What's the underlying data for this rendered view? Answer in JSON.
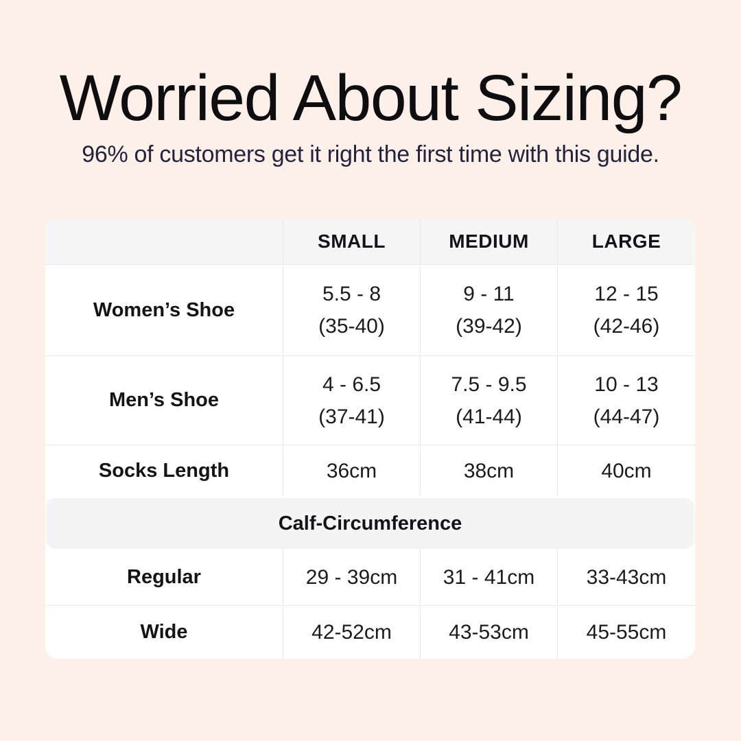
{
  "header": {
    "title": "Worried About Sizing?",
    "subtitle": "96% of customers get it right the first time with this guide."
  },
  "colors": {
    "background": "#FCF0E8",
    "table_background": "#FFFFFF",
    "header_row_background": "#F5F5F6",
    "section_band_background": "#F4F4F5",
    "border": "#E9E9EB",
    "title_text": "#0E0E10",
    "subtitle_text": "#23233F",
    "table_text": "#1B1B1D"
  },
  "table": {
    "columns": [
      "",
      "SMALL",
      "MEDIUM",
      "LARGE"
    ],
    "rows": [
      {
        "label": "Women’s Shoe",
        "cells": [
          [
            "5.5 - 8",
            "(35-40)"
          ],
          [
            "9 - 11",
            "(39-42)"
          ],
          [
            "12 - 15",
            "(42-46)"
          ]
        ]
      },
      {
        "label": "Men’s Shoe",
        "cells": [
          [
            "4 - 6.5",
            "(37-41)"
          ],
          [
            "7.5 - 9.5",
            "(41-44)"
          ],
          [
            "10 - 13",
            "(44-47)"
          ]
        ]
      },
      {
        "label": "Socks Length",
        "cells": [
          [
            "36cm"
          ],
          [
            "38cm"
          ],
          [
            "40cm"
          ]
        ]
      }
    ],
    "section_header": "Calf-Circumference",
    "section_rows": [
      {
        "label": "Regular",
        "cells": [
          [
            "29 - 39cm"
          ],
          [
            "31 - 41cm"
          ],
          [
            "33-43cm"
          ]
        ]
      },
      {
        "label": "Wide",
        "cells": [
          [
            "42-52cm"
          ],
          [
            "43-53cm"
          ],
          [
            "45-55cm"
          ]
        ]
      }
    ]
  },
  "chart_data": {
    "type": "table",
    "title": "Worried About Sizing?",
    "subtitle": "96% of customers get it right the first time with this guide.",
    "columns": [
      "",
      "SMALL",
      "MEDIUM",
      "LARGE"
    ],
    "rows": [
      [
        "Women’s Shoe",
        "5.5 - 8 (35-40)",
        "9 - 11 (39-42)",
        "12 - 15 (42-46)"
      ],
      [
        "Men’s Shoe",
        "4 - 6.5 (37-41)",
        "7.5 - 9.5 (41-44)",
        "10 - 13 (44-47)"
      ],
      [
        "Socks Length",
        "36cm",
        "38cm",
        "40cm"
      ],
      [
        "Calf-Circumference",
        "",
        "",
        ""
      ],
      [
        "Regular",
        "29 - 39cm",
        "31 - 41cm",
        "33-43cm"
      ],
      [
        "Wide",
        "42-52cm",
        "43-53cm",
        "45-55cm"
      ]
    ],
    "layout_hints": {
      "section_header_row_index": 3,
      "two_line_cells": "shoe rows show US size on line 1 and EU size in parentheses on line 2"
    }
  }
}
